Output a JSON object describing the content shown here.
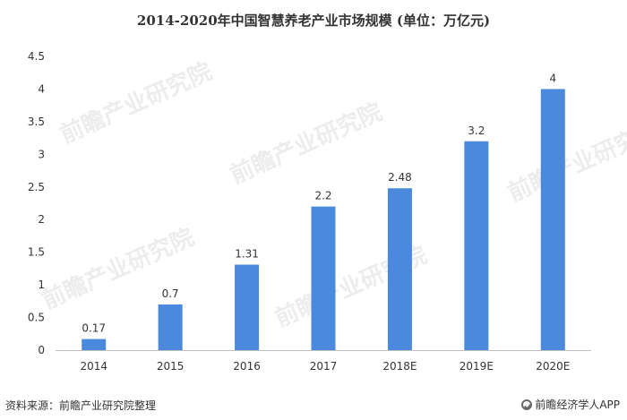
{
  "title": "2014-2020年中国智慧养老产业市场规模 (单位：万亿元)",
  "footer": {
    "source": "资料来源：前瞻产业研究院整理",
    "brand": "前瞻经济学人APP",
    "brand_icon": "brand-logo-icon"
  },
  "watermark": "前瞻产业研究院",
  "chart_data": {
    "type": "bar",
    "title": "2014-2020年中国智慧养老产业市场规模 (单位：万亿元)",
    "categories": [
      "2014",
      "2015",
      "2016",
      "2017",
      "2018E",
      "2019E",
      "2020E"
    ],
    "values": [
      0.17,
      0.7,
      1.31,
      2.2,
      2.48,
      3.2,
      4
    ],
    "value_labels": [
      "0.17",
      "0.7",
      "1.31",
      "2.2",
      "2.48",
      "3.2",
      "4"
    ],
    "ylim": [
      0,
      4.5
    ],
    "yticks": [
      "0",
      "0.5",
      "1",
      "1.5",
      "2",
      "2.5",
      "3",
      "3.5",
      "4",
      "4.5"
    ],
    "grid": false,
    "bar_color": "#4a89dc",
    "xlabel": "",
    "ylabel": ""
  }
}
